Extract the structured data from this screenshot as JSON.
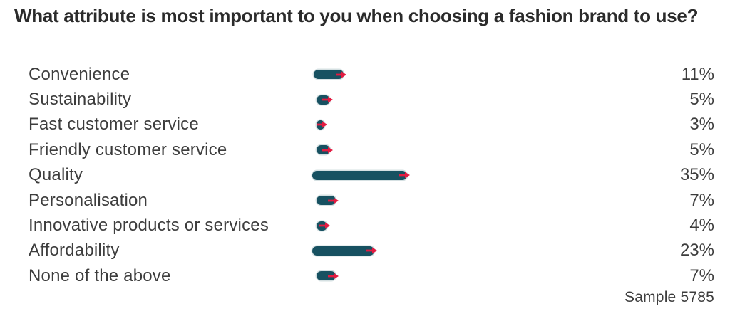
{
  "title": "What attribute is most important to you when choosing a fashion brand to use?",
  "sample_label": "Sample 5785",
  "colors": {
    "background": "#ffffff",
    "bar": "#175161",
    "marker": "#e31b41",
    "title_text": "#2b2b2b",
    "body_text": "#3d3d3d"
  },
  "chart_data": {
    "type": "bar",
    "orientation": "horizontal",
    "title": "What attribute is most important to you when choosing a fashion brand to use?",
    "categories": [
      "Convenience",
      "Sustainability",
      "Fast customer service",
      "Friendly customer service",
      "Quality",
      "Personalisation",
      "Innovative products or services",
      "Affordability",
      "None of the above"
    ],
    "values": [
      11,
      5,
      3,
      5,
      35,
      7,
      4,
      23,
      7
    ],
    "value_labels": [
      "11%",
      "5%",
      "3%",
      "5%",
      "35%",
      "7%",
      "4%",
      "23%",
      "7%"
    ],
    "value_suffix": "%",
    "xlim": [
      0,
      35
    ],
    "grid": false,
    "legend": "none",
    "annotation": "Sample 5785",
    "bar_end_marker": "red-arrow"
  }
}
